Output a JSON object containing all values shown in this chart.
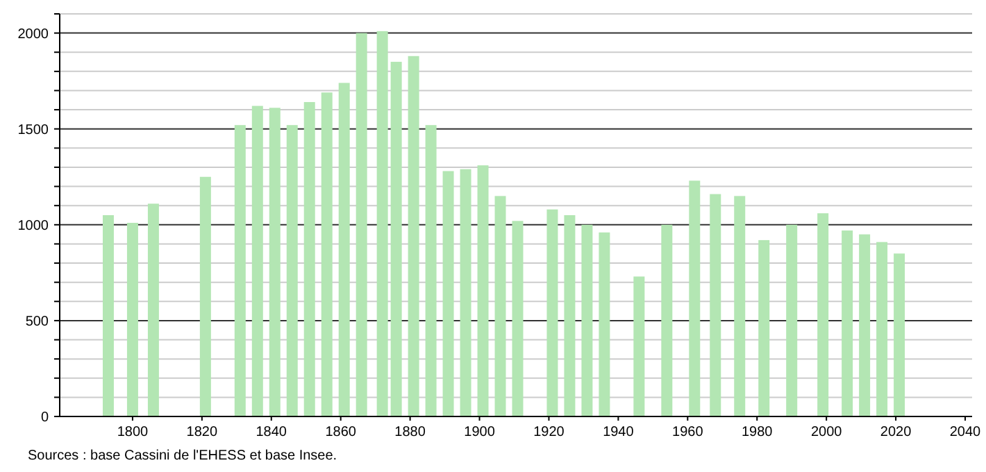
{
  "chart_data": {
    "type": "bar",
    "x": [
      1793,
      1800,
      1806,
      1821,
      1831,
      1836,
      1841,
      1846,
      1851,
      1856,
      1861,
      1866,
      1872,
      1876,
      1881,
      1886,
      1891,
      1896,
      1901,
      1906,
      1911,
      1921,
      1926,
      1931,
      1936,
      1946,
      1954,
      1962,
      1968,
      1975,
      1982,
      1990,
      1999,
      2006,
      2011,
      2016,
      2021
    ],
    "values": [
      1050,
      1010,
      1110,
      1250,
      1520,
      1620,
      1610,
      1520,
      1640,
      1690,
      1740,
      2000,
      2010,
      1850,
      1880,
      1520,
      1280,
      1290,
      1310,
      1150,
      1020,
      1080,
      1050,
      1000,
      960,
      730,
      1000,
      1230,
      1160,
      1150,
      920,
      1000,
      1060,
      970,
      950,
      910,
      850
    ],
    "color": "#b3e6b3",
    "xlim": [
      1779,
      2042
    ],
    "xticks": [
      1800,
      1820,
      1840,
      1860,
      1880,
      1900,
      1920,
      1940,
      1960,
      1980,
      2000,
      2020,
      2040
    ],
    "ylim": [
      0,
      2100
    ],
    "yticks": [
      0,
      {
        "value": 100,
        "label": null
      },
      {
        "value": 200,
        "label": null
      },
      {
        "value": 300,
        "label": null
      },
      {
        "value": 400,
        "label": null
      },
      500,
      {
        "value": 600,
        "label": null
      },
      {
        "value": 700,
        "label": null
      },
      {
        "value": 800,
        "label": null
      },
      {
        "value": 900,
        "label": null
      },
      1000,
      {
        "value": 1100,
        "label": null
      },
      {
        "value": 1200,
        "label": null
      },
      {
        "value": 1300,
        "label": null
      },
      {
        "value": 1400,
        "label": null
      },
      1500,
      {
        "value": 1600,
        "label": null
      },
      {
        "value": 1700,
        "label": null
      },
      {
        "value": 1800,
        "label": null
      },
      {
        "value": 1900,
        "label": null
      },
      2000,
      {
        "value": 2100,
        "label": null
      }
    ],
    "grid": true,
    "annotations": [
      "Sources : base Cassini de l'EHESS et base Insee."
    ]
  }
}
